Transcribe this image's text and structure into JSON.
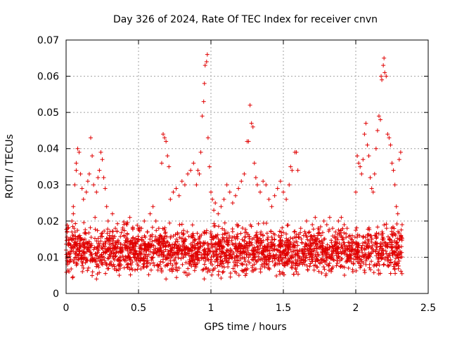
{
  "chart_data": {
    "type": "scatter",
    "title": "Day 326 of 2024, Rate Of TEC Index for receiver cnvn",
    "xlabel": "GPS time / hours",
    "ylabel": "ROTI / TECUs",
    "xlim": [
      0,
      2.5
    ],
    "ylim": [
      0,
      0.07
    ],
    "xticks": [
      0,
      0.5,
      1,
      1.5,
      2,
      2.5
    ],
    "xtick_labels": [
      "0",
      "0.5",
      "1",
      "1.5",
      "2",
      "2.5"
    ],
    "yticks": [
      0,
      0.01,
      0.02,
      0.03,
      0.04,
      0.05,
      0.06,
      0.07
    ],
    "ytick_labels": [
      "0",
      "0.01",
      "0.02",
      "0.03",
      "0.04",
      "0.05",
      "0.06",
      "0.07"
    ],
    "grid": true,
    "marker": "+",
    "marker_color": "#e00000",
    "grid_color": "#a0a0a0",
    "series": [
      {
        "name": "ROTI",
        "points": [
          [
            0.0,
            0.012
          ],
          [
            0.01,
            0.018
          ],
          [
            0.01,
            0.008
          ],
          [
            0.02,
            0.015
          ],
          [
            0.02,
            0.006
          ],
          [
            0.03,
            0.011
          ],
          [
            0.04,
            0.017
          ],
          [
            0.04,
            0.02
          ],
          [
            0.05,
            0.022
          ],
          [
            0.05,
            0.024
          ],
          [
            0.06,
            0.03
          ],
          [
            0.07,
            0.036
          ],
          [
            0.07,
            0.034
          ],
          [
            0.08,
            0.04
          ],
          [
            0.09,
            0.039
          ],
          [
            0.1,
            0.033
          ],
          [
            0.11,
            0.029
          ],
          [
            0.12,
            0.026
          ],
          [
            0.13,
            0.015
          ],
          [
            0.14,
            0.028
          ],
          [
            0.15,
            0.031
          ],
          [
            0.16,
            0.033
          ],
          [
            0.17,
            0.043
          ],
          [
            0.18,
            0.038
          ],
          [
            0.19,
            0.03
          ],
          [
            0.2,
            0.021
          ],
          [
            0.21,
            0.028
          ],
          [
            0.22,
            0.032
          ],
          [
            0.23,
            0.034
          ],
          [
            0.24,
            0.039
          ],
          [
            0.25,
            0.037
          ],
          [
            0.26,
            0.032
          ],
          [
            0.27,
            0.029
          ],
          [
            0.28,
            0.024
          ],
          [
            0.29,
            0.02
          ],
          [
            0.3,
            0.016
          ],
          [
            0.32,
            0.022
          ],
          [
            0.34,
            0.018
          ],
          [
            0.36,
            0.014
          ],
          [
            0.38,
            0.012
          ],
          [
            0.4,
            0.016
          ],
          [
            0.42,
            0.019
          ],
          [
            0.44,
            0.021
          ],
          [
            0.46,
            0.018
          ],
          [
            0.48,
            0.013
          ],
          [
            0.5,
            0.015
          ],
          [
            0.52,
            0.018
          ],
          [
            0.54,
            0.02
          ],
          [
            0.56,
            0.017
          ],
          [
            0.58,
            0.022
          ],
          [
            0.6,
            0.024
          ],
          [
            0.62,
            0.02
          ],
          [
            0.64,
            0.018
          ],
          [
            0.66,
            0.036
          ],
          [
            0.67,
            0.044
          ],
          [
            0.68,
            0.043
          ],
          [
            0.69,
            0.042
          ],
          [
            0.7,
            0.038
          ],
          [
            0.71,
            0.035
          ],
          [
            0.72,
            0.026
          ],
          [
            0.74,
            0.028
          ],
          [
            0.76,
            0.029
          ],
          [
            0.78,
            0.027
          ],
          [
            0.8,
            0.031
          ],
          [
            0.82,
            0.03
          ],
          [
            0.84,
            0.033
          ],
          [
            0.86,
            0.034
          ],
          [
            0.88,
            0.036
          ],
          [
            0.9,
            0.03
          ],
          [
            0.91,
            0.034
          ],
          [
            0.92,
            0.033
          ],
          [
            0.93,
            0.039
          ],
          [
            0.94,
            0.049
          ],
          [
            0.95,
            0.053
          ],
          [
            0.955,
            0.058
          ],
          [
            0.96,
            0.063
          ],
          [
            0.97,
            0.064
          ],
          [
            0.975,
            0.066
          ],
          [
            0.98,
            0.043
          ],
          [
            0.99,
            0.035
          ],
          [
            1.0,
            0.028
          ],
          [
            1.01,
            0.026
          ],
          [
            1.02,
            0.023
          ],
          [
            1.03,
            0.025
          ],
          [
            1.05,
            0.022
          ],
          [
            1.07,
            0.024
          ],
          [
            1.09,
            0.026
          ],
          [
            1.11,
            0.03
          ],
          [
            1.13,
            0.028
          ],
          [
            1.15,
            0.025
          ],
          [
            1.17,
            0.027
          ],
          [
            1.19,
            0.029
          ],
          [
            1.21,
            0.031
          ],
          [
            1.23,
            0.033
          ],
          [
            1.25,
            0.042
          ],
          [
            1.26,
            0.042
          ],
          [
            1.27,
            0.052
          ],
          [
            1.28,
            0.047
          ],
          [
            1.29,
            0.046
          ],
          [
            1.3,
            0.036
          ],
          [
            1.31,
            0.032
          ],
          [
            1.32,
            0.03
          ],
          [
            1.34,
            0.028
          ],
          [
            1.36,
            0.031
          ],
          [
            1.38,
            0.03
          ],
          [
            1.4,
            0.026
          ],
          [
            1.42,
            0.024
          ],
          [
            1.44,
            0.027
          ],
          [
            1.46,
            0.029
          ],
          [
            1.48,
            0.031
          ],
          [
            1.5,
            0.028
          ],
          [
            1.52,
            0.026
          ],
          [
            1.54,
            0.03
          ],
          [
            1.55,
            0.035
          ],
          [
            1.56,
            0.034
          ],
          [
            1.58,
            0.039
          ],
          [
            1.59,
            0.039
          ],
          [
            1.6,
            0.034
          ],
          [
            1.62,
            0.018
          ],
          [
            1.64,
            0.016
          ],
          [
            1.66,
            0.02
          ],
          [
            1.68,
            0.017
          ],
          [
            1.7,
            0.019
          ],
          [
            1.72,
            0.021
          ],
          [
            1.74,
            0.018
          ],
          [
            1.76,
            0.016
          ],
          [
            1.78,
            0.02
          ],
          [
            1.8,
            0.019
          ],
          [
            1.82,
            0.021
          ],
          [
            1.84,
            0.018
          ],
          [
            1.86,
            0.017
          ],
          [
            1.88,
            0.02
          ],
          [
            1.9,
            0.021
          ],
          [
            1.92,
            0.019
          ],
          [
            1.94,
            0.018
          ],
          [
            1.96,
            0.016
          ],
          [
            1.98,
            0.014
          ],
          [
            2.0,
            0.028
          ],
          [
            2.01,
            0.038
          ],
          [
            2.02,
            0.036
          ],
          [
            2.03,
            0.035
          ],
          [
            2.04,
            0.033
          ],
          [
            2.05,
            0.037
          ],
          [
            2.06,
            0.044
          ],
          [
            2.07,
            0.047
          ],
          [
            2.08,
            0.041
          ],
          [
            2.09,
            0.038
          ],
          [
            2.1,
            0.032
          ],
          [
            2.11,
            0.029
          ],
          [
            2.12,
            0.028
          ],
          [
            2.13,
            0.033
          ],
          [
            2.14,
            0.04
          ],
          [
            2.15,
            0.045
          ],
          [
            2.16,
            0.049
          ],
          [
            2.17,
            0.048
          ],
          [
            2.175,
            0.06
          ],
          [
            2.18,
            0.059
          ],
          [
            2.19,
            0.063
          ],
          [
            2.195,
            0.065
          ],
          [
            2.2,
            0.061
          ],
          [
            2.21,
            0.06
          ],
          [
            2.22,
            0.044
          ],
          [
            2.23,
            0.043
          ],
          [
            2.24,
            0.041
          ],
          [
            2.25,
            0.036
          ],
          [
            2.26,
            0.034
          ],
          [
            2.27,
            0.03
          ],
          [
            2.28,
            0.024
          ],
          [
            2.29,
            0.022
          ],
          [
            2.3,
            0.037
          ],
          [
            2.31,
            0.039
          ],
          [
            2.32,
            0.019
          ],
          [
            0.03,
            0.009
          ],
          [
            0.06,
            0.013
          ],
          [
            0.09,
            0.011
          ],
          [
            0.12,
            0.007
          ],
          [
            0.15,
            0.012
          ],
          [
            0.18,
            0.009
          ],
          [
            0.21,
            0.004
          ],
          [
            0.24,
            0.01
          ],
          [
            0.27,
            0.013
          ],
          [
            0.3,
            0.008
          ],
          [
            0.33,
            0.011
          ],
          [
            0.36,
            0.009
          ],
          [
            0.39,
            0.012
          ],
          [
            0.42,
            0.01
          ],
          [
            0.45,
            0.007
          ],
          [
            0.48,
            0.011
          ],
          [
            0.51,
            0.013
          ],
          [
            0.54,
            0.009
          ],
          [
            0.57,
            0.012
          ],
          [
            0.6,
            0.01
          ],
          [
            0.63,
            0.008
          ],
          [
            0.66,
            0.006
          ],
          [
            0.69,
            0.004
          ],
          [
            0.72,
            0.009
          ],
          [
            0.75,
            0.011
          ],
          [
            0.78,
            0.007
          ],
          [
            0.81,
            0.01
          ],
          [
            0.84,
            0.012
          ],
          [
            0.87,
            0.009
          ],
          [
            0.9,
            0.011
          ],
          [
            0.93,
            0.013
          ],
          [
            0.96,
            0.01
          ],
          [
            0.99,
            0.012
          ],
          [
            1.02,
            0.011
          ],
          [
            1.05,
            0.014
          ],
          [
            1.08,
            0.009
          ],
          [
            1.11,
            0.012
          ],
          [
            1.14,
            0.01
          ],
          [
            1.17,
            0.008
          ],
          [
            1.2,
            0.011
          ],
          [
            1.23,
            0.013
          ],
          [
            1.26,
            0.01
          ],
          [
            1.29,
            0.012
          ],
          [
            1.32,
            0.009
          ],
          [
            1.35,
            0.011
          ],
          [
            1.38,
            0.008
          ],
          [
            1.41,
            0.01
          ],
          [
            1.44,
            0.012
          ],
          [
            1.47,
            0.009
          ],
          [
            1.5,
            0.011
          ],
          [
            1.53,
            0.008
          ],
          [
            1.56,
            0.01
          ],
          [
            1.59,
            0.006
          ],
          [
            1.62,
            0.009
          ],
          [
            1.65,
            0.011
          ],
          [
            1.68,
            0.01
          ],
          [
            1.71,
            0.012
          ],
          [
            1.74,
            0.009
          ],
          [
            1.77,
            0.011
          ],
          [
            1.8,
            0.008
          ],
          [
            1.83,
            0.01
          ],
          [
            1.86,
            0.012
          ],
          [
            1.89,
            0.009
          ],
          [
            1.92,
            0.011
          ],
          [
            1.95,
            0.007
          ],
          [
            1.98,
            0.006
          ],
          [
            2.01,
            0.01
          ],
          [
            2.04,
            0.012
          ],
          [
            2.07,
            0.009
          ],
          [
            2.1,
            0.011
          ],
          [
            2.13,
            0.008
          ],
          [
            2.16,
            0.01
          ],
          [
            2.19,
            0.012
          ],
          [
            2.22,
            0.009
          ],
          [
            2.25,
            0.011
          ],
          [
            2.28,
            0.008
          ],
          [
            2.31,
            0.01
          ]
        ]
      }
    ]
  }
}
